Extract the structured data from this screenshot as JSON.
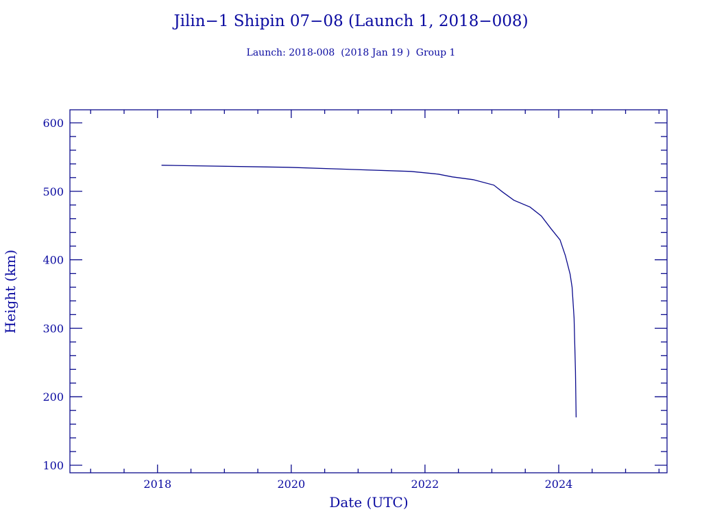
{
  "chart_data": {
    "type": "line",
    "title": "Jilin−1 Shipin 07−08 (Launch 1, 2018−008)",
    "subtitle": "Launch: 2018-008  (2018 Jan 19 )  Group 1",
    "xlabel": "Date (UTC)",
    "ylabel": "Height (km)",
    "xlim": [
      2016.69,
      2025.62
    ],
    "ylim": [
      89,
      619
    ],
    "x_ticks": [
      2018,
      2020,
      2022,
      2024
    ],
    "x_tick_labels": [
      "2018",
      "2020",
      "2022",
      "2024"
    ],
    "x_minor_step": 0.5,
    "y_ticks": [
      100,
      200,
      300,
      400,
      500,
      600
    ],
    "y_tick_labels": [
      "100",
      "200",
      "300",
      "400",
      "500",
      "600"
    ],
    "y_minor_step": 20,
    "grid": false,
    "color": "#0a0a8c",
    "x": [
      2018.06,
      2019.95,
      2021.79,
      2022.2,
      2022.41,
      2022.72,
      2023.03,
      2023.16,
      2023.33,
      2023.57,
      2023.74,
      2023.88,
      2024.02,
      2024.1,
      2024.17,
      2024.2,
      2024.23,
      2024.25,
      2024.26
    ],
    "y": [
      538,
      535,
      529,
      525,
      521,
      517,
      509,
      499,
      487,
      477,
      464,
      446,
      429,
      406,
      379,
      360,
      315,
      238,
      170
    ]
  }
}
